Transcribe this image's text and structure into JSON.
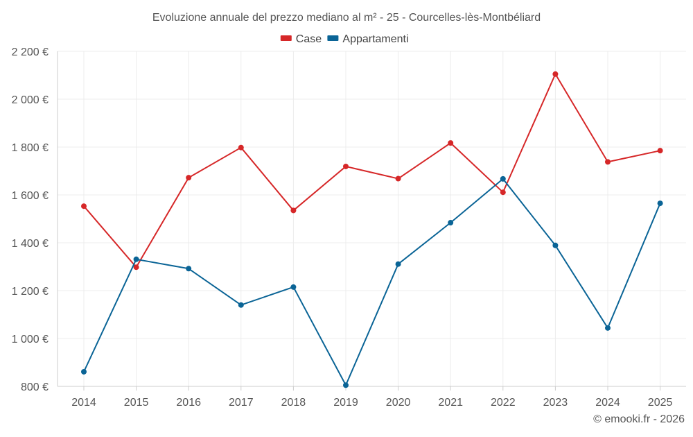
{
  "chart_data": {
    "type": "line",
    "title": "Evoluzione annuale del prezzo mediano al m² - 25 - Courcelles-lès-Montbéliard",
    "xlabel": "",
    "ylabel": "",
    "categories": [
      "2014",
      "2015",
      "2016",
      "2017",
      "2018",
      "2019",
      "2020",
      "2021",
      "2022",
      "2023",
      "2024",
      "2025"
    ],
    "ylim": [
      800,
      2200
    ],
    "yticks": [
      800,
      1000,
      1200,
      1400,
      1600,
      1800,
      2000,
      2200
    ],
    "ytick_labels": [
      "800 €",
      "1 000 €",
      "1 200 €",
      "1 400 €",
      "1 600 €",
      "1 800 €",
      "2 000 €",
      "2 200 €"
    ],
    "grid": true,
    "legend_position": "top-center",
    "series": [
      {
        "name": "Case",
        "color": "#d62728",
        "values": [
          1553,
          1298,
          1672,
          1798,
          1535,
          1719,
          1668,
          1817,
          1611,
          2105,
          1738,
          1785
        ]
      },
      {
        "name": "Appartamenti",
        "color": "#0a6496",
        "values": [
          861,
          1331,
          1292,
          1140,
          1215,
          805,
          1311,
          1484,
          1667,
          1389,
          1044,
          1565
        ]
      }
    ]
  },
  "credit": "© emooki.fr - 2026"
}
